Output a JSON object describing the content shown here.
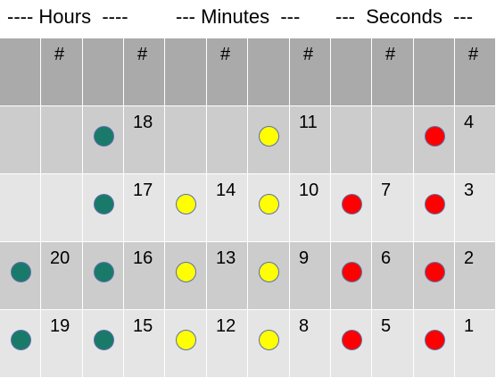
{
  "header": {
    "hours_label": "---- Hours  ----",
    "minutes_label": "--- Minutes  ---",
    "seconds_label": "---  Seconds  ---"
  },
  "column_header_symbol": "#",
  "colors": {
    "header_row": "#aaaaaa",
    "row_dark": "#cccccc",
    "row_light": "#e5e5e5",
    "hours_dot": "#1a7a6a",
    "minutes_dot": "#ffff00",
    "seconds_dot": "#ff0000"
  },
  "rows": [
    {
      "hours": [
        "",
        "18"
      ],
      "minutes": [
        "",
        "11"
      ],
      "seconds": [
        "",
        "4"
      ]
    },
    {
      "hours": [
        "",
        "17"
      ],
      "minutes": [
        "14",
        "10"
      ],
      "seconds": [
        "7",
        "3"
      ]
    },
    {
      "hours": [
        "20",
        "16"
      ],
      "minutes": [
        "13",
        "9"
      ],
      "seconds": [
        "6",
        "2"
      ]
    },
    {
      "hours": [
        "19",
        "15"
      ],
      "minutes": [
        "12",
        "8"
      ],
      "seconds": [
        "5",
        "1"
      ]
    }
  ]
}
